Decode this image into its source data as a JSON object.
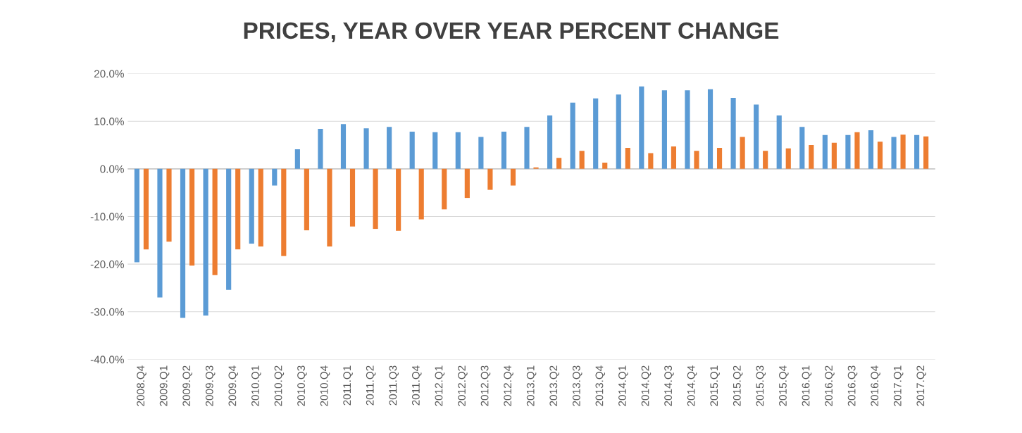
{
  "chart_data": {
    "type": "bar",
    "title": "PRICES, YEAR OVER YEAR PERCENT CHANGE",
    "categories": [
      "2008.Q4",
      "2009.Q1",
      "2009.Q2",
      "2009.Q3",
      "2009.Q4",
      "2010.Q1",
      "2010.Q2",
      "2010.Q3",
      "2010.Q4",
      "2011.Q1",
      "2011.Q2",
      "2011.Q3",
      "2011.Q4",
      "2012.Q1",
      "2012.Q2",
      "2012.Q3",
      "2012.Q4",
      "2013.Q1",
      "2013.Q2",
      "2013.Q3",
      "2013.Q4",
      "2014.Q1",
      "2014.Q2",
      "2014.Q3",
      "2014.Q4",
      "2015.Q1",
      "2015.Q2",
      "2015.Q3",
      "2015.Q4",
      "2016.Q1",
      "2016.Q2",
      "2016.Q3",
      "2016.Q4",
      "2017.Q1",
      "2017.Q2"
    ],
    "series": [
      {
        "color": "#5b9bd5",
        "values": [
          -19.6,
          -27.0,
          -31.3,
          -30.8,
          -25.4,
          -15.7,
          -3.5,
          4.1,
          8.4,
          9.4,
          8.5,
          8.8,
          7.8,
          7.7,
          7.7,
          6.7,
          7.8,
          8.8,
          11.2,
          13.9,
          14.8,
          15.6,
          17.3,
          16.5,
          16.5,
          16.7,
          14.9,
          13.5,
          11.2,
          8.8,
          7.1,
          7.1,
          8.1,
          6.7,
          7.1
        ]
      },
      {
        "color": "#ed7d31",
        "values": [
          -16.9,
          -15.3,
          -20.3,
          -22.3,
          -16.9,
          -16.3,
          -18.3,
          -12.9,
          -16.3,
          -12.1,
          -12.6,
          -13.0,
          -10.6,
          -8.5,
          -6.1,
          -4.4,
          -3.5,
          0.3,
          2.3,
          3.8,
          1.3,
          4.4,
          3.3,
          4.7,
          3.8,
          4.4,
          6.7,
          3.8,
          4.3,
          5.0,
          5.5,
          7.7,
          5.7,
          7.2,
          6.8
        ]
      }
    ],
    "ylim": [
      -40,
      20
    ],
    "yticks": [
      {
        "value": -40,
        "label": "-40.0%"
      },
      {
        "value": -30,
        "label": "-30.0%"
      },
      {
        "value": -20,
        "label": "-20.0%"
      },
      {
        "value": -10,
        "label": "-10.0%"
      },
      {
        "value": 0,
        "label": "0.0%"
      },
      {
        "value": 10,
        "label": "10.0%"
      },
      {
        "value": 20,
        "label": "20.0%"
      }
    ],
    "grid": "y"
  }
}
